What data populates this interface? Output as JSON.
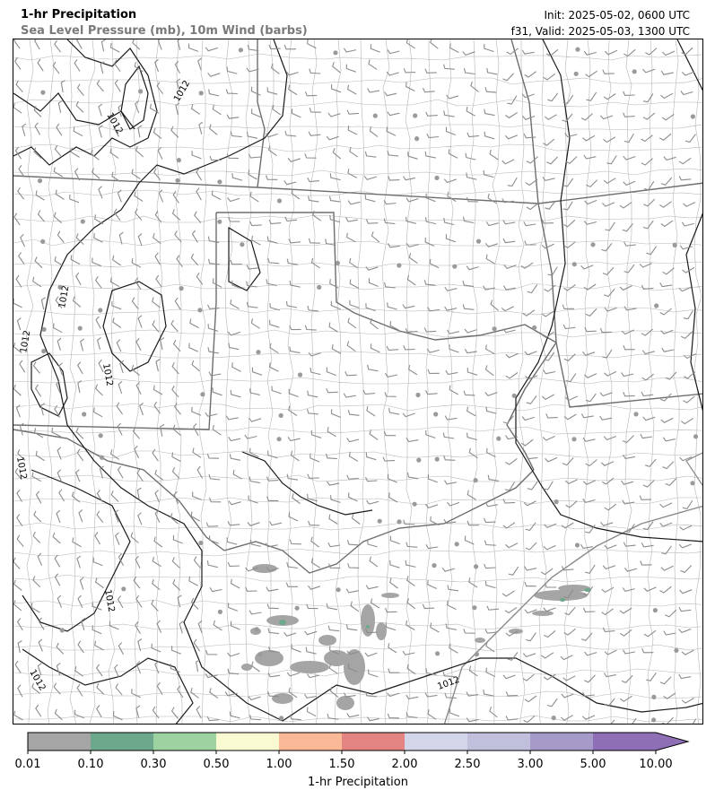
{
  "header": {
    "title": "1-hr Precipitation",
    "subtitle": "Sea Level Pressure (mb), 10m Wind (barbs)",
    "init": "Init: 2025-05-02, 0600 UTC",
    "valid": "f31, Valid: 2025-05-03, 1300 UTC"
  },
  "map": {
    "isobar_label": "1012",
    "colors": {
      "state_border": "#6e6e6e",
      "county_border": "#b4b4b4",
      "isobar": "#1a1a1a",
      "barb": "#8c8c8c",
      "calm_dot": "#9a9a9a"
    }
  },
  "colorbar": {
    "label": "1-hr Precipitation",
    "ticks": [
      "0.01",
      "0.10",
      "0.30",
      "0.50",
      "1.00",
      "1.50",
      "2.00",
      "2.50",
      "3.00",
      "5.00",
      "10.00"
    ],
    "colors": [
      "#a5a5a5",
      "#6ea88c",
      "#9dd3a0",
      "#fafad2",
      "#fbb896",
      "#e38483",
      "#d3d6e8",
      "#c0c0dc",
      "#a69bc8",
      "#8e6eb5"
    ],
    "extend": "max"
  }
}
